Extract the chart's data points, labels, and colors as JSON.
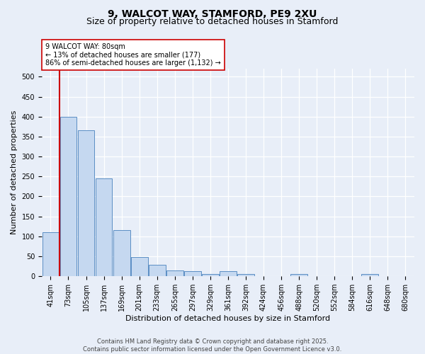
{
  "title": "9, WALCOT WAY, STAMFORD, PE9 2XU",
  "subtitle": "Size of property relative to detached houses in Stamford",
  "xlabel": "Distribution of detached houses by size in Stamford",
  "ylabel": "Number of detached properties",
  "bar_labels": [
    "41sqm",
    "73sqm",
    "105sqm",
    "137sqm",
    "169sqm",
    "201sqm",
    "233sqm",
    "265sqm",
    "297sqm",
    "329sqm",
    "361sqm",
    "392sqm",
    "424sqm",
    "456sqm",
    "488sqm",
    "520sqm",
    "552sqm",
    "584sqm",
    "616sqm",
    "648sqm",
    "680sqm"
  ],
  "bar_values": [
    110,
    400,
    365,
    245,
    115,
    48,
    28,
    14,
    12,
    5,
    12,
    5,
    0,
    0,
    5,
    0,
    0,
    0,
    5,
    0,
    0
  ],
  "bar_color": "#c5d8f0",
  "bar_edge_color": "#5b8ec4",
  "property_line_color": "#cc0000",
  "annotation_line1": "9 WALCOT WAY: 80sqm",
  "annotation_line2": "← 13% of detached houses are smaller (177)",
  "annotation_line3": "86% of semi-detached houses are larger (1,132) →",
  "annotation_box_color": "#ffffff",
  "annotation_box_edge": "#cc0000",
  "ylim": [
    0,
    520
  ],
  "yticks": [
    0,
    50,
    100,
    150,
    200,
    250,
    300,
    350,
    400,
    450,
    500
  ],
  "background_color": "#e8eef8",
  "plot_bg_color": "#e8eef8",
  "grid_color": "#ffffff",
  "footer_text": "Contains HM Land Registry data © Crown copyright and database right 2025.\nContains public sector information licensed under the Open Government Licence v3.0.",
  "title_fontsize": 10,
  "subtitle_fontsize": 9,
  "ylabel_fontsize": 8,
  "xlabel_fontsize": 8,
  "tick_fontsize": 7,
  "annotation_fontsize": 7,
  "footer_fontsize": 6
}
